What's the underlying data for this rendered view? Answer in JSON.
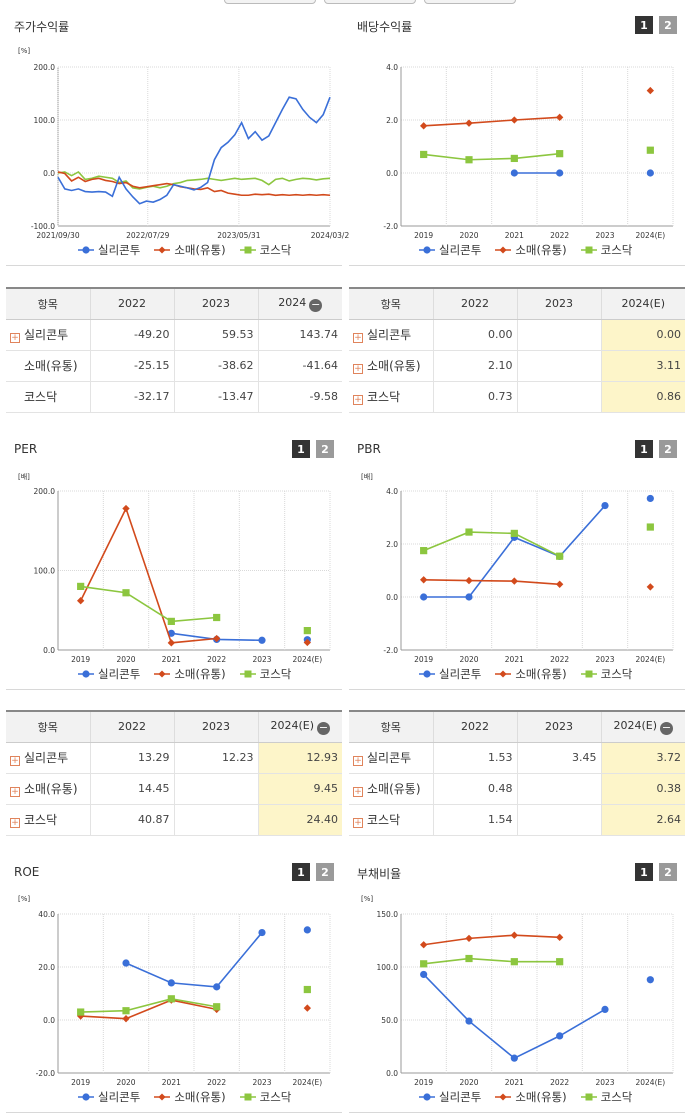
{
  "colors": {
    "s1": "#3a6fd8",
    "s2": "#d24a1c",
    "s3": "#8cc63f",
    "grid": "#d9d9d9",
    "axis": "#999999"
  },
  "legend": [
    "실리콘투",
    "소매(유통)",
    "코스닥"
  ],
  "tab_labels": [
    "1",
    "2"
  ],
  "chart_data": [
    {
      "id": "stock-return",
      "type": "line",
      "title": "주가수익률",
      "unit": "[%]",
      "ylim": [
        -100,
        200
      ],
      "yticks": [
        "200.0",
        "100.0",
        "0.0",
        "-100.0"
      ],
      "xticks": [
        "2021/09/30",
        "2022/07/29",
        "2023/05/31",
        "2024/03/2"
      ],
      "x_range": [
        0,
        100
      ],
      "xtick_pos": [
        0,
        33,
        66.5,
        100
      ],
      "series": [
        {
          "name": "실리콘투",
          "x": [
            0,
            2.5,
            5,
            7.5,
            10,
            12.5,
            15,
            17.5,
            20,
            22.5,
            25,
            27.5,
            30,
            32.5,
            35,
            37.5,
            40,
            42.5,
            45,
            47.5,
            50,
            52.5,
            55,
            57.5,
            60,
            62.5,
            65,
            67.5,
            70,
            72.5,
            75,
            77.5,
            80,
            82.5,
            85,
            87.5,
            90,
            92.5,
            95,
            97.5,
            100
          ],
          "values": [
            -8,
            -30,
            -33,
            -30,
            -35,
            -36,
            -35,
            -36,
            -44,
            -8,
            -30,
            -45,
            -58,
            -53,
            -55,
            -50,
            -42,
            -22,
            -25,
            -28,
            -32,
            -27,
            -18,
            25,
            48,
            58,
            72,
            95,
            65,
            78,
            62,
            70,
            95,
            120,
            143,
            140,
            120,
            105,
            95,
            110,
            143
          ]
        },
        {
          "name": "소매(유통)",
          "x": [
            0,
            2.5,
            5,
            7.5,
            10,
            12.5,
            15,
            17.5,
            20,
            22.5,
            25,
            27.5,
            30,
            32.5,
            35,
            37.5,
            40,
            42.5,
            45,
            47.5,
            50,
            52.5,
            55,
            57.5,
            60,
            62.5,
            65,
            67.5,
            70,
            72.5,
            75,
            77.5,
            80,
            82.5,
            85,
            87.5,
            90,
            92.5,
            95,
            97.5,
            100
          ],
          "values": [
            2,
            -1,
            -15,
            -8,
            -16,
            -12,
            -10,
            -14,
            -16,
            -20,
            -18,
            -25,
            -28,
            -26,
            -24,
            -22,
            -20,
            -22,
            -26,
            -28,
            -30,
            -31,
            -28,
            -35,
            -33,
            -38,
            -40,
            -42,
            -42,
            -40,
            -41,
            -40,
            -42,
            -41,
            -42,
            -41,
            -42,
            -41,
            -42,
            -41,
            -42
          ]
        },
        {
          "name": "코스닥",
          "x": [
            0,
            2.5,
            5,
            7.5,
            10,
            12.5,
            15,
            17.5,
            20,
            22.5,
            25,
            27.5,
            30,
            32.5,
            35,
            37.5,
            40,
            42.5,
            45,
            47.5,
            50,
            52.5,
            55,
            57.5,
            60,
            62.5,
            65,
            67.5,
            70,
            72.5,
            75,
            77.5,
            80,
            82.5,
            85,
            87.5,
            90,
            92.5,
            95,
            97.5,
            100
          ],
          "values": [
            0,
            2,
            -5,
            2,
            -12,
            -10,
            -6,
            -8,
            -10,
            -18,
            -15,
            -28,
            -30,
            -27,
            -25,
            -28,
            -25,
            -20,
            -18,
            -14,
            -13,
            -12,
            -10,
            -12,
            -14,
            -12,
            -10,
            -12,
            -11,
            -10,
            -14,
            -22,
            -12,
            -10,
            -15,
            -12,
            -10,
            -11,
            -13,
            -11,
            -10
          ]
        }
      ]
    },
    {
      "id": "dividend-yield",
      "type": "line",
      "title": "배당수익률",
      "unit": "[%]",
      "ylim": [
        -2,
        4
      ],
      "yticks": [
        "4.0",
        "2.0",
        "0.0",
        "-2.0"
      ],
      "categories": [
        "2019",
        "2020",
        "2021",
        "2022",
        "2023",
        "2024(E)"
      ],
      "series": [
        {
          "name": "실리콘투",
          "values": [
            null,
            null,
            0.0,
            0.0,
            null,
            0.0
          ]
        },
        {
          "name": "소매(유통)",
          "values": [
            1.78,
            1.88,
            2.0,
            2.1,
            null,
            3.11
          ]
        },
        {
          "name": "코스닥",
          "values": [
            0.7,
            0.5,
            0.55,
            0.73,
            null,
            0.86
          ]
        }
      ]
    },
    {
      "id": "per",
      "type": "line",
      "title": "PER",
      "unit": "[배]",
      "ylim": [
        0,
        200
      ],
      "yticks": [
        "200.0",
        "100.0",
        "0.0"
      ],
      "categories": [
        "2019",
        "2020",
        "2021",
        "2022",
        "2023",
        "2024(E)"
      ],
      "series": [
        {
          "name": "실리콘투",
          "values": [
            null,
            null,
            21,
            13.29,
            12.23,
            12.93
          ]
        },
        {
          "name": "소매(유통)",
          "values": [
            62,
            178,
            9,
            14.45,
            null,
            9.45
          ]
        },
        {
          "name": "코스닥",
          "values": [
            80,
            72,
            36,
            40.87,
            null,
            24.4
          ]
        }
      ]
    },
    {
      "id": "pbr",
      "type": "line",
      "title": "PBR",
      "unit": "[배]",
      "ylim": [
        -2,
        4
      ],
      "yticks": [
        "4.0",
        "2.0",
        "0.0",
        "-2.0"
      ],
      "categories": [
        "2019",
        "2020",
        "2021",
        "2022",
        "2023",
        "2024(E)"
      ],
      "series": [
        {
          "name": "실리콘투",
          "values": [
            0.0,
            0.0,
            2.25,
            1.53,
            3.45,
            3.72
          ]
        },
        {
          "name": "소매(유통)",
          "values": [
            0.65,
            0.62,
            0.6,
            0.48,
            null,
            0.38
          ]
        },
        {
          "name": "코스닥",
          "values": [
            1.75,
            2.45,
            2.4,
            1.54,
            null,
            2.64
          ]
        }
      ]
    },
    {
      "id": "roe",
      "type": "line",
      "title": "ROE",
      "unit": "[%]",
      "ylim": [
        -20,
        40
      ],
      "yticks": [
        "40.0",
        "20.0",
        "0.0",
        "-20.0"
      ],
      "categories": [
        "2019",
        "2020",
        "2021",
        "2022",
        "2023",
        "2024(E)"
      ],
      "series": [
        {
          "name": "실리콘투",
          "values": [
            null,
            21.5,
            14,
            12.5,
            33,
            34
          ]
        },
        {
          "name": "소매(유통)",
          "values": [
            1.5,
            0.5,
            7.5,
            4,
            null,
            4.5
          ]
        },
        {
          "name": "코스닥",
          "values": [
            3,
            3.5,
            8,
            5,
            null,
            11.5
          ]
        }
      ]
    },
    {
      "id": "debt-ratio",
      "type": "line",
      "title": "부채비율",
      "unit": "[%]",
      "ylim": [
        0,
        150
      ],
      "yticks": [
        "150.0",
        "100.0",
        "50.0",
        "0.0"
      ],
      "categories": [
        "2019",
        "2020",
        "2021",
        "2022",
        "2023",
        "2024(E)"
      ],
      "series": [
        {
          "name": "실리콘투",
          "values": [
            93,
            49,
            14,
            35,
            60,
            88
          ]
        },
        {
          "name": "소매(유통)",
          "values": [
            121,
            127,
            130,
            128,
            null,
            null
          ]
        },
        {
          "name": "코스닥",
          "values": [
            103,
            108,
            105,
            105,
            null,
            null
          ]
        }
      ]
    }
  ],
  "tables": {
    "stock-return": {
      "headers": [
        "항목",
        "2022",
        "2023",
        "2024"
      ],
      "collapse_icon": "minus-icon",
      "highlight_last": false,
      "rows": [
        {
          "name": "실리콘투",
          "expand": true,
          "cells": [
            "-49.20",
            "59.53",
            "143.74"
          ]
        },
        {
          "name": "소매(유통)",
          "expand": false,
          "cells": [
            "-25.15",
            "-38.62",
            "-41.64"
          ]
        },
        {
          "name": "코스닥",
          "expand": false,
          "cells": [
            "-32.17",
            "-13.47",
            "-9.58"
          ]
        }
      ]
    },
    "dividend-yield": {
      "headers": [
        "항목",
        "2022",
        "2023",
        "2024(E)"
      ],
      "collapse_icon": "",
      "highlight_last": true,
      "rows": [
        {
          "name": "실리콘투",
          "expand": true,
          "cells": [
            "0.00",
            "",
            "0.00"
          ]
        },
        {
          "name": "소매(유통)",
          "expand": true,
          "cells": [
            "2.10",
            "",
            "3.11"
          ]
        },
        {
          "name": "코스닥",
          "expand": true,
          "cells": [
            "0.73",
            "",
            "0.86"
          ]
        }
      ]
    },
    "per": {
      "headers": [
        "항목",
        "2022",
        "2023",
        "2024(E)"
      ],
      "collapse_icon": "minus-icon",
      "highlight_last": true,
      "rows": [
        {
          "name": "실리콘투",
          "expand": true,
          "cells": [
            "13.29",
            "12.23",
            "12.93"
          ]
        },
        {
          "name": "소매(유통)",
          "expand": true,
          "cells": [
            "14.45",
            "",
            "9.45"
          ]
        },
        {
          "name": "코스닥",
          "expand": true,
          "cells": [
            "40.87",
            "",
            "24.40"
          ]
        }
      ]
    },
    "pbr": {
      "headers": [
        "항목",
        "2022",
        "2023",
        "2024(E)"
      ],
      "collapse_icon": "minus-icon",
      "highlight_last": true,
      "rows": [
        {
          "name": "실리콘투",
          "expand": true,
          "cells": [
            "1.53",
            "3.45",
            "3.72"
          ]
        },
        {
          "name": "소매(유통)",
          "expand": true,
          "cells": [
            "0.48",
            "",
            "0.38"
          ]
        },
        {
          "name": "코스닥",
          "expand": true,
          "cells": [
            "1.54",
            "",
            "2.64"
          ]
        }
      ]
    }
  }
}
